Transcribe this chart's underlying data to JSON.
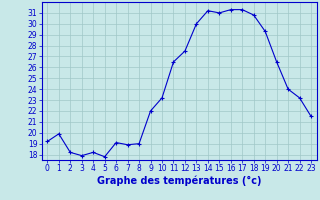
{
  "hours": [
    0,
    1,
    2,
    3,
    4,
    5,
    6,
    7,
    8,
    9,
    10,
    11,
    12,
    13,
    14,
    15,
    16,
    17,
    18,
    19,
    20,
    21,
    22,
    23
  ],
  "temperatures": [
    19.2,
    19.9,
    18.2,
    17.9,
    18.2,
    17.8,
    19.1,
    18.9,
    19.0,
    22.0,
    23.2,
    26.5,
    27.5,
    30.0,
    31.2,
    31.0,
    31.3,
    31.3,
    30.8,
    29.3,
    26.5,
    24.0,
    23.2,
    21.5
  ],
  "line_color": "#0000cc",
  "marker": "+",
  "bg_color": "#c8e8e8",
  "grid_color": "#a0c8c8",
  "xlabel": "Graphe des températures (°c)",
  "xlabel_color": "#0000cc",
  "ylim": [
    17.5,
    32.0
  ],
  "yticks": [
    18,
    19,
    20,
    21,
    22,
    23,
    24,
    25,
    26,
    27,
    28,
    29,
    30,
    31
  ],
  "xticks": [
    0,
    1,
    2,
    3,
    4,
    5,
    6,
    7,
    8,
    9,
    10,
    11,
    12,
    13,
    14,
    15,
    16,
    17,
    18,
    19,
    20,
    21,
    22,
    23
  ],
  "tick_color": "#0000cc",
  "spine_color": "#0000cc",
  "tick_fontsize": 5.5,
  "xlabel_fontsize": 7.0
}
